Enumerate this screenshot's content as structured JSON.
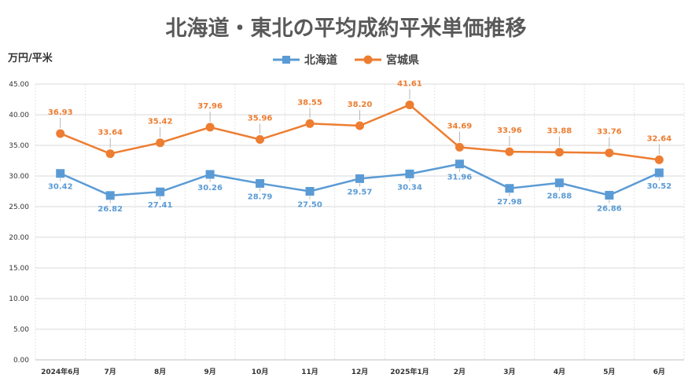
{
  "chart_data": {
    "type": "line",
    "title": "北海道・東北の平均成約平米単価推移",
    "ylabel": "万円/平米",
    "ylim": [
      0,
      45
    ],
    "yticks": [
      "0.00",
      "5.00",
      "10.00",
      "15.00",
      "20.00",
      "25.00",
      "30.00",
      "35.00",
      "40.00",
      "45.00"
    ],
    "categories": [
      "2024年6月",
      "7月",
      "8月",
      "9月",
      "10月",
      "11月",
      "12月",
      "2025年1月",
      "2月",
      "3月",
      "4月",
      "5月",
      "6月"
    ],
    "grid": true,
    "legend_position": "top",
    "series": [
      {
        "name": "北海道",
        "color": "#5b9bd5",
        "marker": "square",
        "values": [
          30.42,
          26.82,
          27.41,
          30.26,
          28.79,
          27.5,
          29.57,
          30.34,
          31.96,
          27.98,
          28.88,
          26.86,
          30.52
        ],
        "labels": [
          "30.42",
          "26.82",
          "27.41",
          "30.26",
          "28.79",
          "27.50",
          "29.57",
          "30.34",
          "31.96",
          "27.98",
          "28.88",
          "26.86",
          "30.52"
        ]
      },
      {
        "name": "宮城県",
        "color": "#ed7d31",
        "marker": "circle",
        "values": [
          36.93,
          33.64,
          35.42,
          37.96,
          35.96,
          38.55,
          38.2,
          41.61,
          34.69,
          33.96,
          33.88,
          33.76,
          32.64
        ],
        "labels": [
          "36.93",
          "33.64",
          "35.42",
          "37.96",
          "35.96",
          "38.55",
          "38.20",
          "41.61",
          "34.69",
          "33.96",
          "33.88",
          "33.76",
          "32.64"
        ]
      }
    ]
  }
}
